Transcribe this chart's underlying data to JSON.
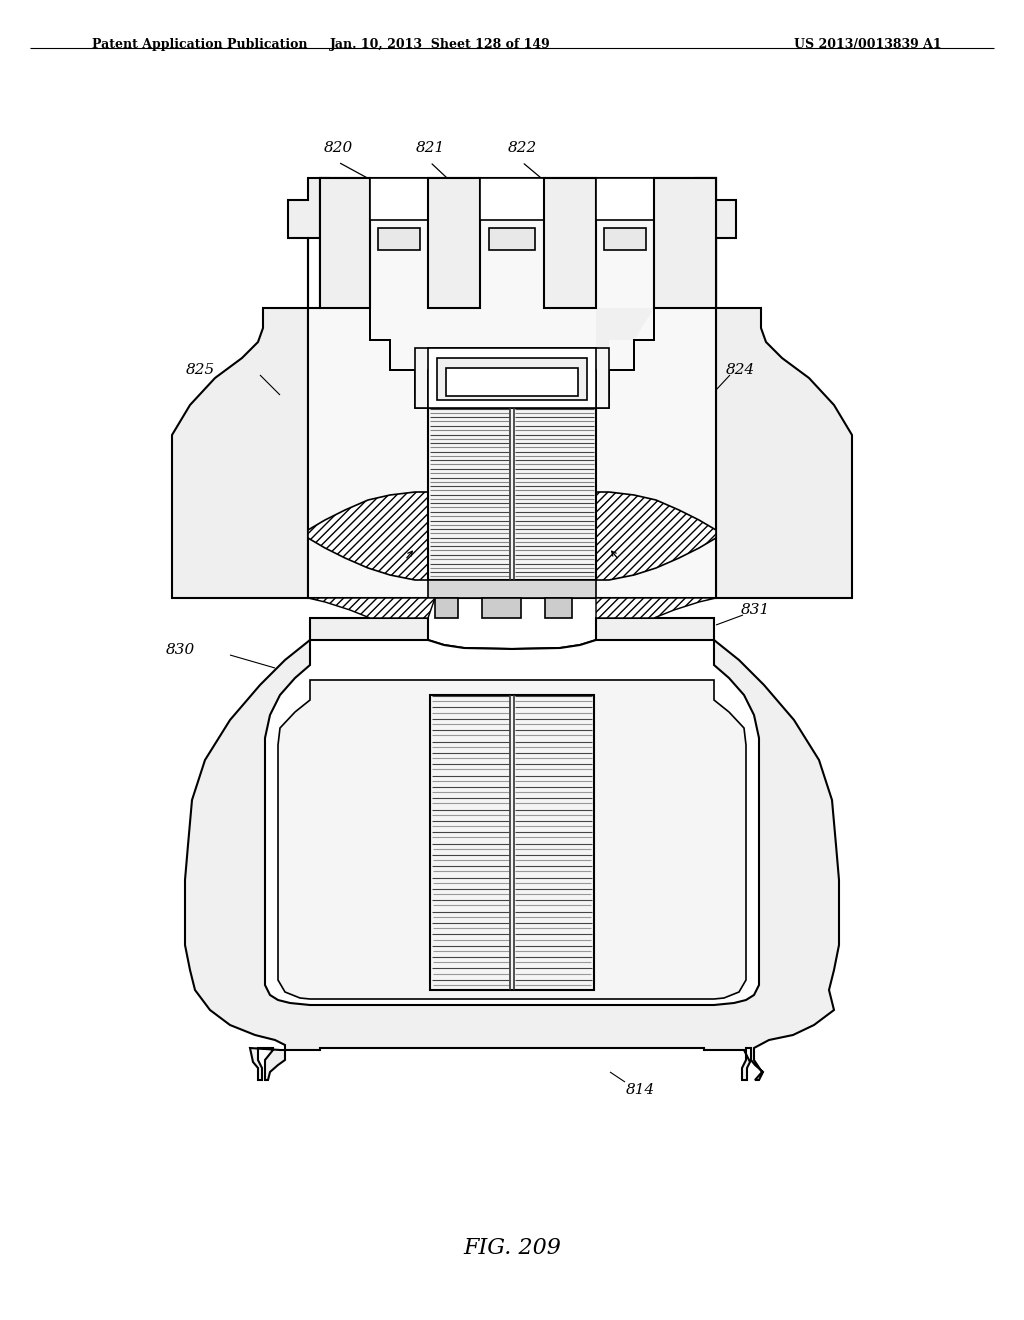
{
  "title": "FIG. 209",
  "header_left": "Patent Application Publication",
  "header_mid": "Jan. 10, 2013  Sheet 128 of 149",
  "header_right": "US 2013/0013839 A1",
  "bg_color": "#ffffff",
  "line_color": "#000000",
  "line_width": 1.5
}
